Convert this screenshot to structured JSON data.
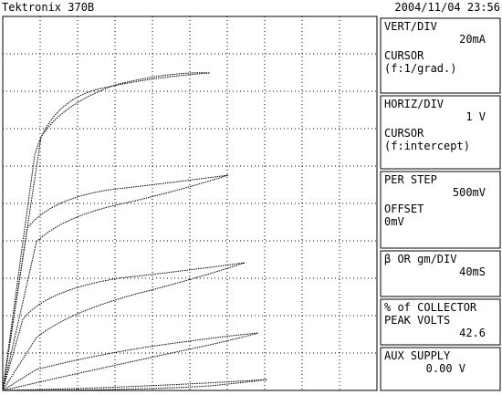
{
  "header": {
    "title": "Tektronix 370B",
    "timestamp": "2004/11/04 23:56"
  },
  "panels": [
    {
      "label": "VERT/DIV",
      "value": "20mA",
      "label2": "CURSOR",
      "value2": "(f:1/grad.)"
    },
    {
      "label": "HORIZ/DIV",
      "value": "1 V",
      "label2": "CURSOR",
      "value2": "(f:intercept)"
    },
    {
      "label": "PER STEP",
      "value": "500mV",
      "label2": "OFFSET",
      "value2": "0mV"
    },
    {
      "label": "β OR gm/DIV",
      "value": "40mS"
    },
    {
      "label": "% of COLLECTOR",
      "label2": "PEAK VOLTS",
      "value": "42.6"
    },
    {
      "label": "AUX SUPPLY",
      "value": "0.00 V"
    }
  ]
}
